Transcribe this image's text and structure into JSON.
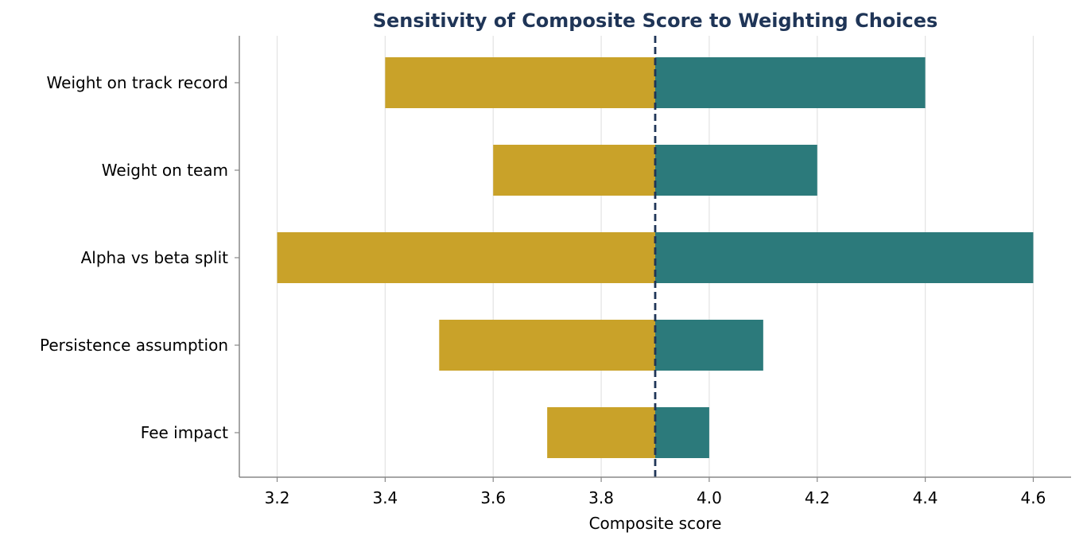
{
  "chart_data": {
    "type": "bar",
    "orientation": "horizontal",
    "layout": "tornado",
    "title": "Sensitivity of Composite Score to Weighting Choices",
    "xlabel": "Composite score",
    "ylabel": "",
    "xlim": [
      3.13,
      4.67
    ],
    "xticks": [
      3.2,
      3.4,
      3.6,
      3.8,
      4.0,
      4.2,
      4.4,
      4.6
    ],
    "xtick_labels": [
      "3.2",
      "3.4",
      "3.6",
      "3.8",
      "4.0",
      "4.2",
      "4.4",
      "4.6"
    ],
    "baseline": 3.9,
    "categories": [
      "Weight on track record",
      "Weight on team",
      "Alpha vs beta split",
      "Persistence assumption",
      "Fee impact"
    ],
    "low": [
      3.4,
      3.6,
      3.2,
      3.5,
      3.7
    ],
    "high": [
      4.4,
      4.2,
      4.6,
      4.1,
      4.0
    ],
    "grid": "vertical",
    "legend": "none",
    "colors": {
      "low": "#C9A229",
      "high": "#2C7A7B",
      "baseline": "#1F3557",
      "title": "#1F3557",
      "grid": "#E3E3E3",
      "axis": "#888888"
    }
  }
}
